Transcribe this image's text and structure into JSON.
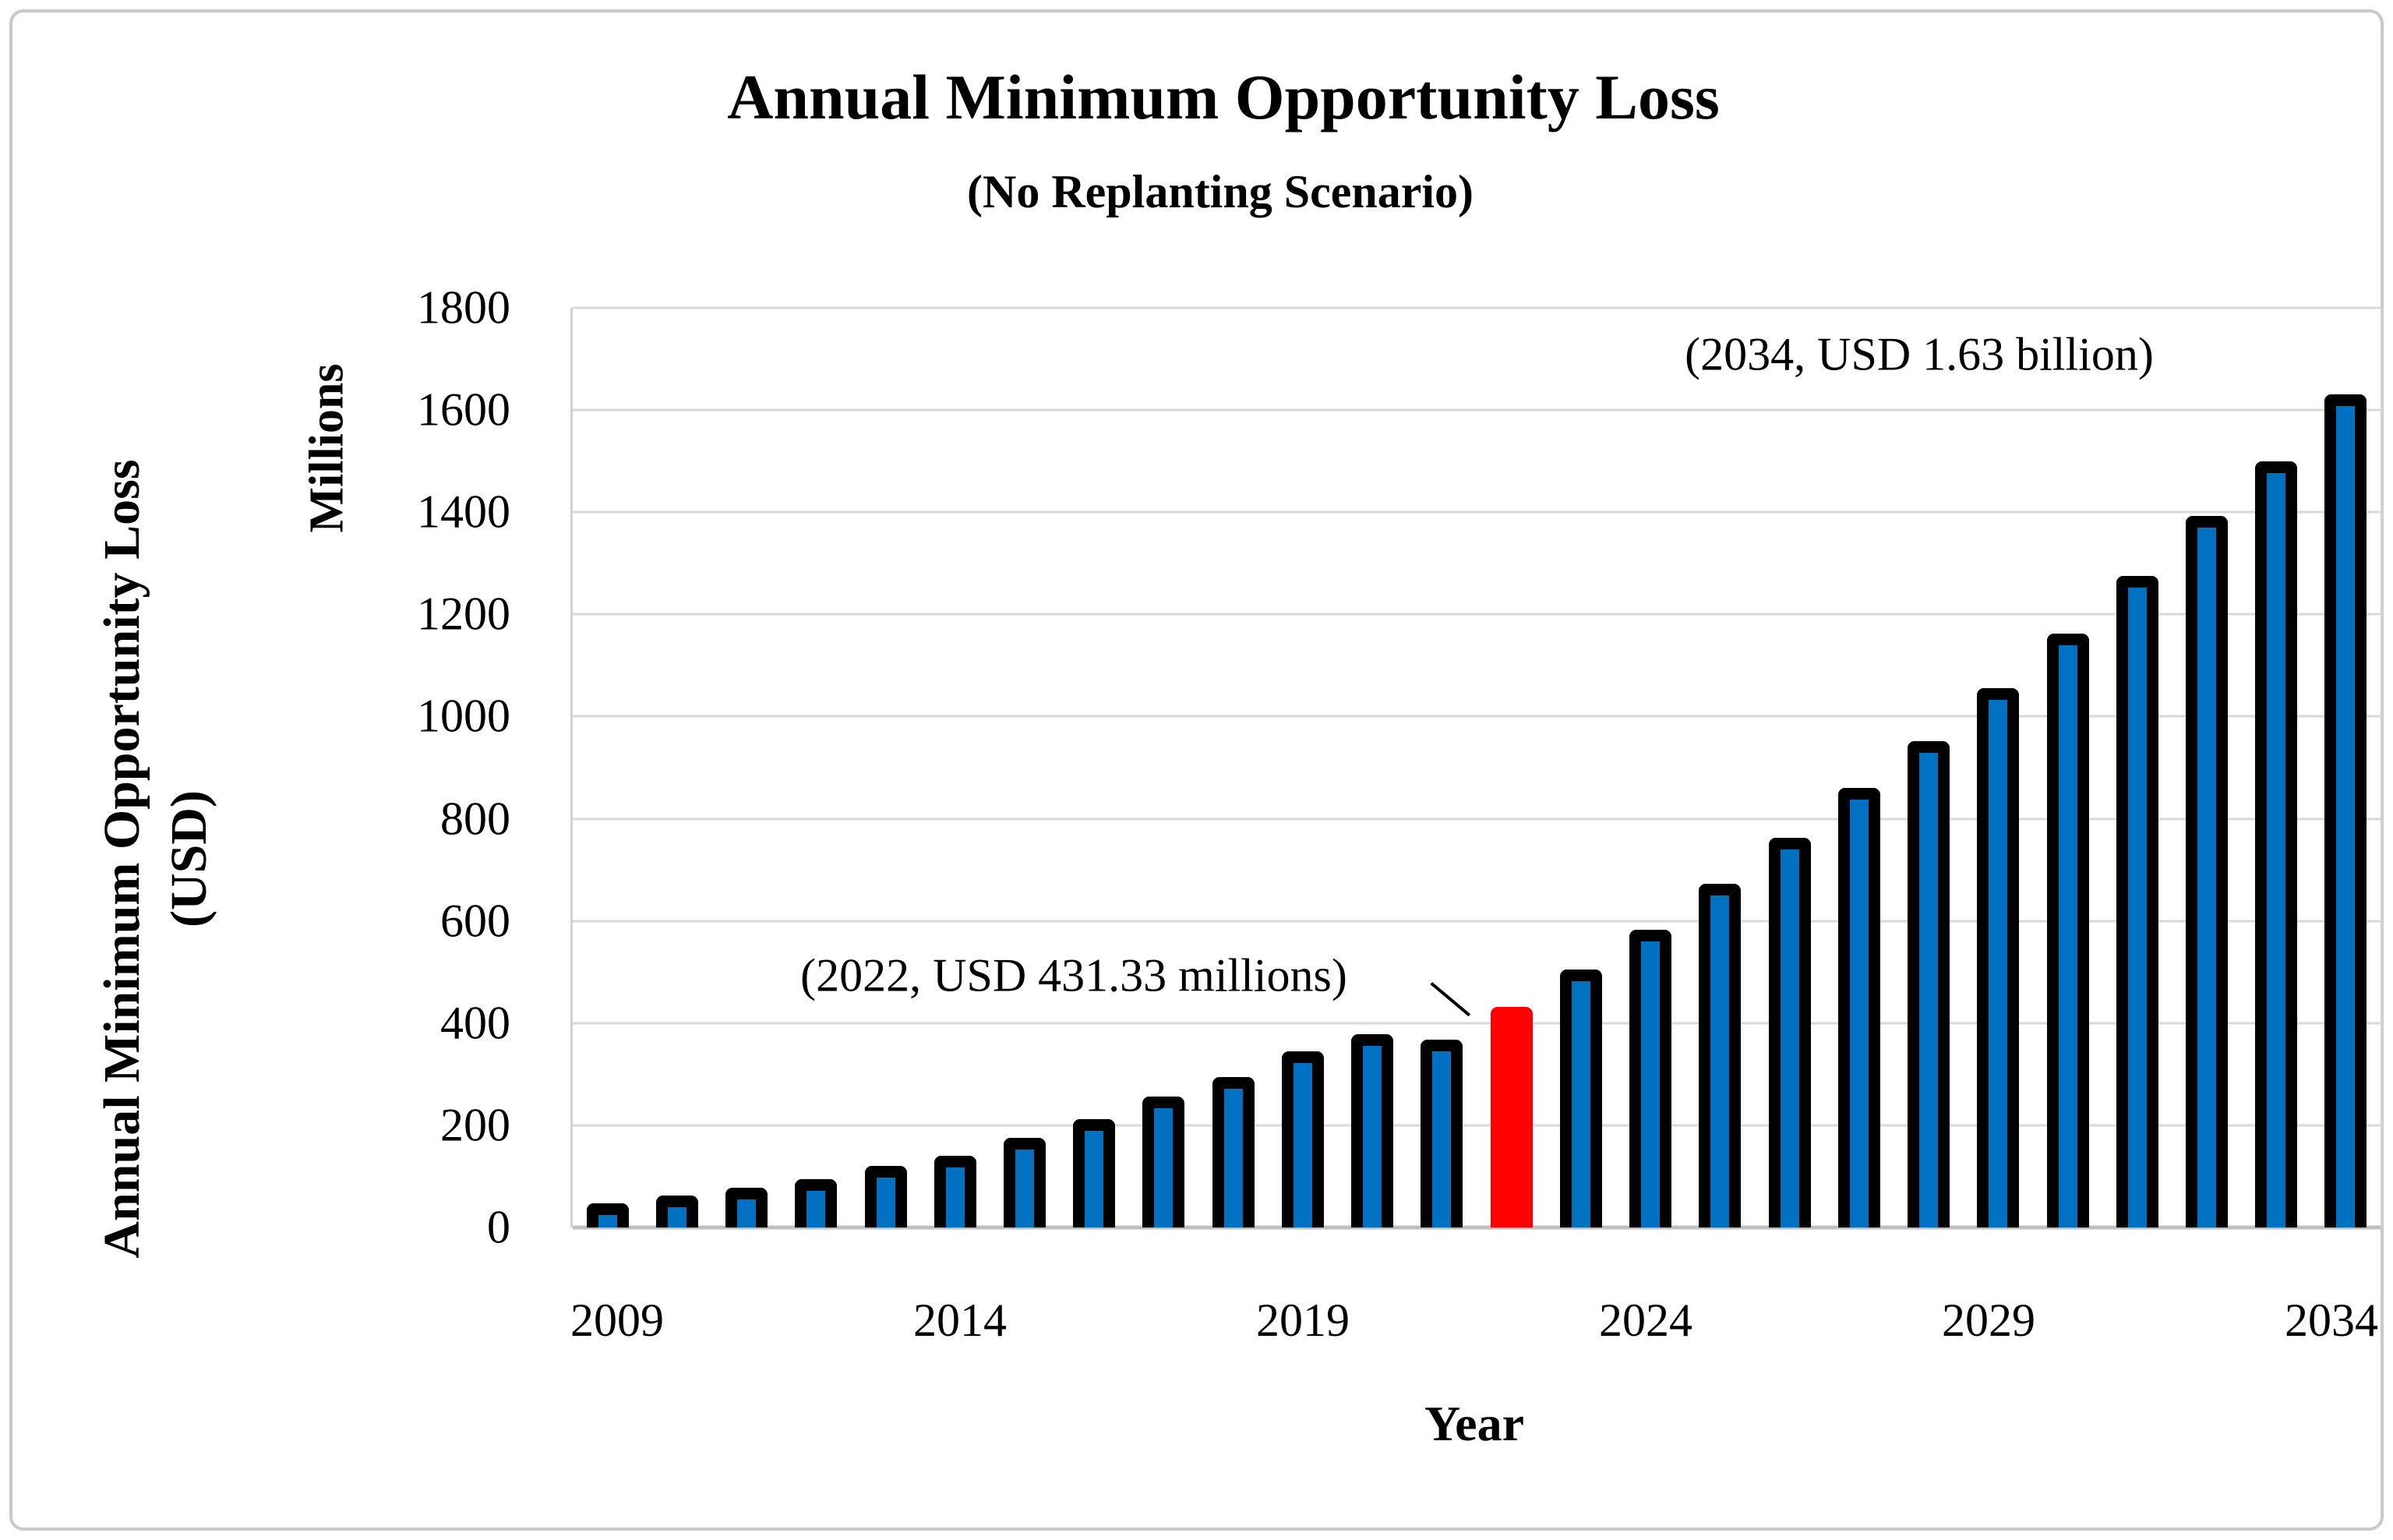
{
  "figure": {
    "title": "Annual Minimum Opportunity Loss",
    "subtitle": "(No Replanting Scenario)",
    "x_axis_title": "Year",
    "y_axis_title_line1": "Annual Minimum Opportunity Loss",
    "y_axis_title_line2": "(USD)",
    "y_units_label": "Millions",
    "annotations": {
      "a2022": "(2022, USD 431.33 millions)",
      "a2034": "(2034, USD 1.63 billion)"
    }
  },
  "colors": {
    "bar_fill": "#0070C0",
    "bar_outline": "#000000",
    "highlight_fill": "#FF0000",
    "gridline": "#D9D9D9",
    "axis_line": "#BFBFBF",
    "frame": "#C9C9C9",
    "text": "#000000"
  },
  "chart_data": {
    "type": "bar",
    "title": "Annual Minimum Opportunity Loss (No Replanting Scenario)",
    "xlabel": "Year",
    "ylabel": "Annual Minimum Opportunity Loss (USD), Millions",
    "categories": [
      2009,
      2010,
      2011,
      2012,
      2013,
      2014,
      2015,
      2016,
      2017,
      2018,
      2019,
      2020,
      2021,
      2022,
      2023,
      2024,
      2025,
      2026,
      2027,
      2028,
      2029,
      2030,
      2031,
      2032,
      2033,
      2034
    ],
    "values": [
      48,
      62,
      78,
      95,
      120,
      141,
      175,
      212,
      256,
      295,
      345,
      379,
      367,
      431.33,
      505,
      583,
      672,
      763,
      860,
      952,
      1055,
      1163,
      1275,
      1392,
      1500,
      1630
    ],
    "highlight_year": 2022,
    "highlight_value_label": "USD 431.33 millions",
    "endpoint_value_label": "USD 1.63 billion",
    "ylim": [
      0,
      1800
    ],
    "y_ticks": [
      1800,
      1600,
      1400,
      1200,
      1000,
      800,
      600,
      400,
      200,
      0
    ],
    "x_tick_labels_shown": [
      "2009",
      "2014",
      "2019",
      "2024",
      "2029",
      "2034"
    ],
    "grid": true,
    "legend": "none"
  }
}
